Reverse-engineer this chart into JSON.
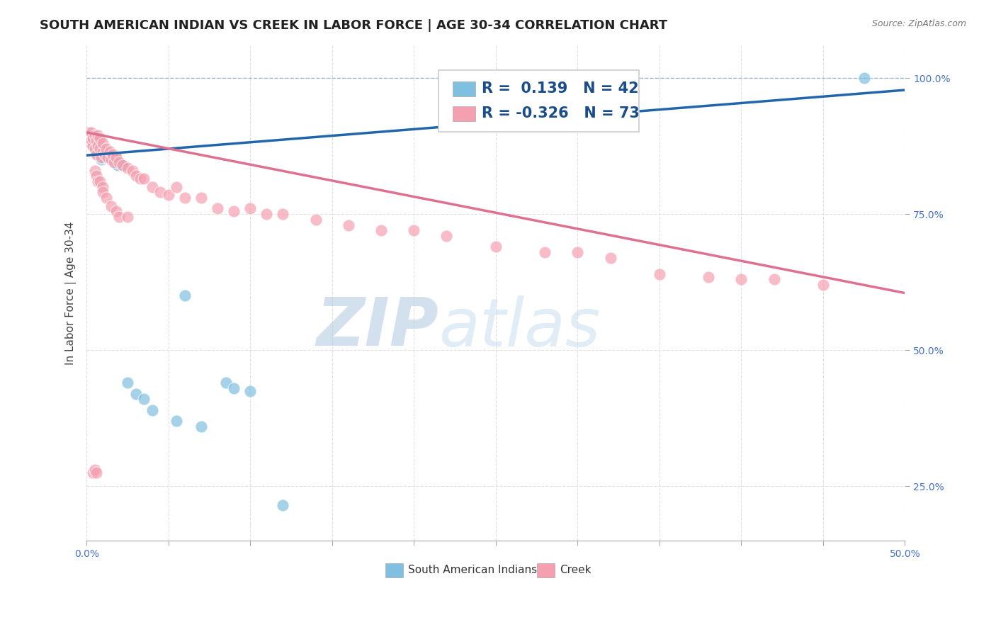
{
  "title": "SOUTH AMERICAN INDIAN VS CREEK IN LABOR FORCE | AGE 30-34 CORRELATION CHART",
  "source": "Source: ZipAtlas.com",
  "ylabel": "In Labor Force | Age 30-34",
  "xlim": [
    0.0,
    0.5
  ],
  "ylim": [
    0.15,
    1.06
  ],
  "xticks": [
    0.0,
    0.05,
    0.1,
    0.15,
    0.2,
    0.25,
    0.3,
    0.35,
    0.4,
    0.45,
    0.5
  ],
  "yticks": [
    0.25,
    0.5,
    0.75,
    1.0
  ],
  "ytick_labels": [
    "25.0%",
    "50.0%",
    "75.0%",
    "100.0%"
  ],
  "xtick_labels": [
    "0.0%",
    "",
    "",
    "",
    "",
    "",
    "",
    "",
    "",
    "",
    "50.0%"
  ],
  "legend_blue_r": "0.139",
  "legend_blue_n": "42",
  "legend_pink_r": "-0.326",
  "legend_pink_n": "73",
  "blue_color": "#7fbfdf",
  "pink_color": "#f4a0b0",
  "trend_blue_color": "#2166ac",
  "trend_pink_color": "#e07090",
  "watermark_zip": "ZIP",
  "watermark_atlas": "atlas",
  "blue_scatter_x": [
    0.001,
    0.001,
    0.002,
    0.002,
    0.002,
    0.003,
    0.003,
    0.003,
    0.004,
    0.004,
    0.005,
    0.005,
    0.006,
    0.006,
    0.007,
    0.007,
    0.008,
    0.008,
    0.009,
    0.01,
    0.01,
    0.012,
    0.013,
    0.015,
    0.017,
    0.017,
    0.018,
    0.019,
    0.02,
    0.022,
    0.025,
    0.03,
    0.035,
    0.04,
    0.055,
    0.06,
    0.07,
    0.085,
    0.09,
    0.1,
    0.12,
    0.475
  ],
  "blue_scatter_y": [
    0.895,
    0.9,
    0.885,
    0.895,
    0.895,
    0.885,
    0.88,
    0.89,
    0.875,
    0.885,
    0.875,
    0.885,
    0.87,
    0.88,
    0.86,
    0.875,
    0.86,
    0.875,
    0.85,
    0.855,
    0.865,
    0.86,
    0.855,
    0.85,
    0.845,
    0.85,
    0.855,
    0.84,
    0.845,
    0.84,
    0.44,
    0.42,
    0.41,
    0.39,
    0.37,
    0.6,
    0.36,
    0.44,
    0.43,
    0.425,
    0.215,
    1.0
  ],
  "pink_scatter_x": [
    0.001,
    0.001,
    0.002,
    0.002,
    0.003,
    0.003,
    0.004,
    0.004,
    0.005,
    0.005,
    0.006,
    0.006,
    0.007,
    0.007,
    0.008,
    0.008,
    0.009,
    0.01,
    0.01,
    0.011,
    0.012,
    0.013,
    0.014,
    0.015,
    0.016,
    0.017,
    0.018,
    0.02,
    0.022,
    0.025,
    0.028,
    0.03,
    0.033,
    0.035,
    0.04,
    0.045,
    0.05,
    0.055,
    0.06,
    0.07,
    0.08,
    0.09,
    0.1,
    0.11,
    0.12,
    0.14,
    0.16,
    0.18,
    0.2,
    0.22,
    0.25,
    0.28,
    0.3,
    0.32,
    0.35,
    0.38,
    0.4,
    0.42,
    0.45,
    0.005,
    0.006,
    0.007,
    0.008,
    0.01,
    0.01,
    0.012,
    0.015,
    0.018,
    0.02,
    0.025,
    0.004,
    0.005,
    0.006
  ],
  "pink_scatter_y": [
    0.9,
    0.89,
    0.895,
    0.88,
    0.885,
    0.9,
    0.875,
    0.89,
    0.87,
    0.895,
    0.86,
    0.885,
    0.875,
    0.895,
    0.87,
    0.89,
    0.855,
    0.865,
    0.88,
    0.86,
    0.87,
    0.855,
    0.865,
    0.85,
    0.86,
    0.845,
    0.855,
    0.845,
    0.84,
    0.835,
    0.83,
    0.82,
    0.815,
    0.815,
    0.8,
    0.79,
    0.785,
    0.8,
    0.78,
    0.78,
    0.76,
    0.755,
    0.76,
    0.75,
    0.75,
    0.74,
    0.73,
    0.72,
    0.72,
    0.71,
    0.69,
    0.68,
    0.68,
    0.67,
    0.64,
    0.635,
    0.63,
    0.63,
    0.62,
    0.83,
    0.82,
    0.81,
    0.81,
    0.8,
    0.79,
    0.78,
    0.765,
    0.755,
    0.745,
    0.745,
    0.275,
    0.28,
    0.275
  ],
  "blue_trend_x": [
    0.0,
    0.5
  ],
  "blue_trend_y": [
    0.858,
    0.978
  ],
  "pink_trend_x": [
    0.0,
    0.5
  ],
  "pink_trend_y": [
    0.9,
    0.605
  ],
  "dashed_line_y": 1.0,
  "bg_color": "#ffffff",
  "grid_color": "#e0e0e0",
  "title_fontsize": 13,
  "axis_label_fontsize": 11,
  "tick_fontsize": 10,
  "legend_fontsize": 14,
  "watermark_color_zip": "#b0c8e0",
  "watermark_color_atlas": "#c8ddf0",
  "watermark_fontsize": 68
}
